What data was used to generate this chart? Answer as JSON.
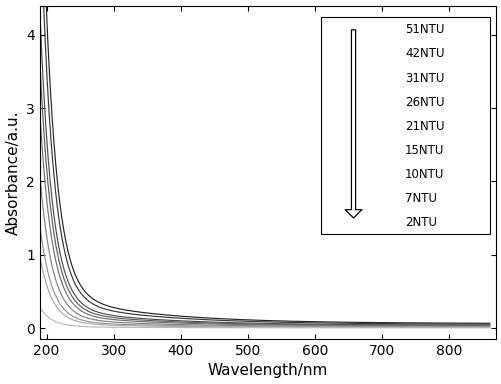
{
  "title": "",
  "xlabel": "Wavelength/nm",
  "ylabel": "Absorbance/a.u.",
  "xlim": [
    190,
    870
  ],
  "ylim": [
    -0.15,
    4.4
  ],
  "xticks": [
    200,
    300,
    400,
    500,
    600,
    700,
    800
  ],
  "yticks": [
    0,
    1,
    2,
    3,
    4
  ],
  "ntu_values": [
    51,
    42,
    31,
    26,
    21,
    15,
    10,
    7,
    2
  ],
  "background_color": "#ffffff",
  "legend_labels": [
    "51NTU",
    "42NTU",
    "31NTU",
    "26NTU",
    "21NTU",
    "15NTU",
    "10NTU",
    "7NTU",
    "2NTU"
  ],
  "gray_levels": [
    0.15,
    0.22,
    0.3,
    0.37,
    0.44,
    0.51,
    0.58,
    0.65,
    0.72
  ]
}
